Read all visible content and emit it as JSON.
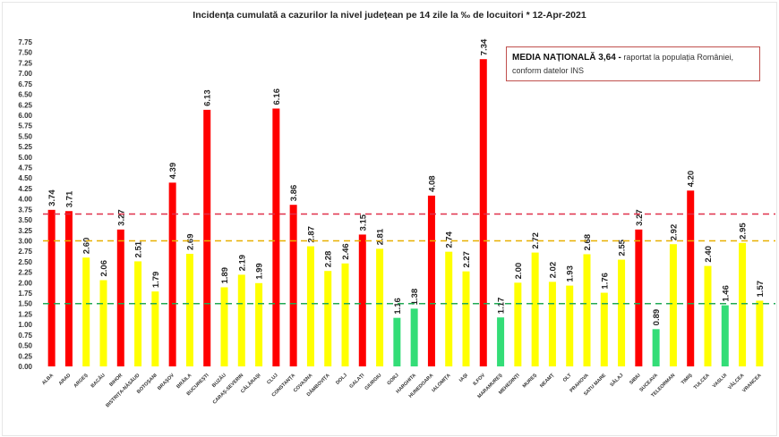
{
  "chart_data": {
    "type": "bar",
    "title": "Incidența cumulată a cazurilor la nivel județean pe 14 zile la ‰ de locuitori *   12-Apr-2021",
    "xlabel": "",
    "ylabel": "",
    "ylim": [
      0,
      7.75
    ],
    "ytick_step": 0.25,
    "grid": false,
    "categories": [
      "ALBA",
      "ARAD",
      "ARGEȘ",
      "BACĂU",
      "BIHOR",
      "BISTRIȚA-NĂSĂUD",
      "BOTOȘANI",
      "BRAȘOV",
      "BRĂILA",
      "BUCUREȘTI",
      "BUZĂU",
      "CARAȘ-SEVERIN",
      "CĂLĂRAȘI",
      "CLUJ",
      "CONSTANȚA",
      "COVASNA",
      "DÂMBOVIȚA",
      "DOLJ",
      "GALAȚI",
      "GIURGIU",
      "GORJ",
      "HARGHITA",
      "HUNEDOARA",
      "IALOMIȚA",
      "IAȘI",
      "ILFOV",
      "MARAMUREȘ",
      "MEHEDINȚI",
      "MUREȘ",
      "NEAMȚ",
      "OLT",
      "PRAHOVA",
      "SATU MARE",
      "SĂLAJ",
      "SIBIU",
      "SUCEAVA",
      "TELEORMAN",
      "TIMIȘ",
      "TULCEA",
      "VASLUI",
      "VÂLCEA",
      "VRANCEA"
    ],
    "values": [
      3.74,
      3.71,
      2.6,
      2.06,
      3.27,
      2.51,
      1.79,
      4.39,
      2.69,
      6.13,
      1.89,
      2.19,
      1.99,
      6.16,
      3.86,
      2.87,
      2.28,
      2.46,
      3.15,
      2.81,
      1.16,
      1.38,
      4.08,
      2.74,
      2.27,
      7.34,
      1.17,
      2.0,
      2.72,
      2.02,
      1.93,
      2.68,
      1.76,
      2.55,
      3.27,
      0.89,
      2.92,
      4.2,
      2.4,
      1.46,
      2.95,
      1.57
    ],
    "reference_lines": [
      {
        "value": 3.64,
        "color": "#e0304a"
      },
      {
        "value": 3.0,
        "color": "#e8b000"
      },
      {
        "value": 1.5,
        "color": "#22aa55"
      }
    ],
    "colors": {
      "high": "#ff0000",
      "medium": "#ffff00",
      "low": "#33dd77"
    },
    "color_thresholds": [
      1.5,
      3.0
    ]
  },
  "annotation": {
    "bold": "MEDIA NAȚIONALĂ  3,64 -",
    "text": " raportat la populația României, conform datelor INS"
  }
}
